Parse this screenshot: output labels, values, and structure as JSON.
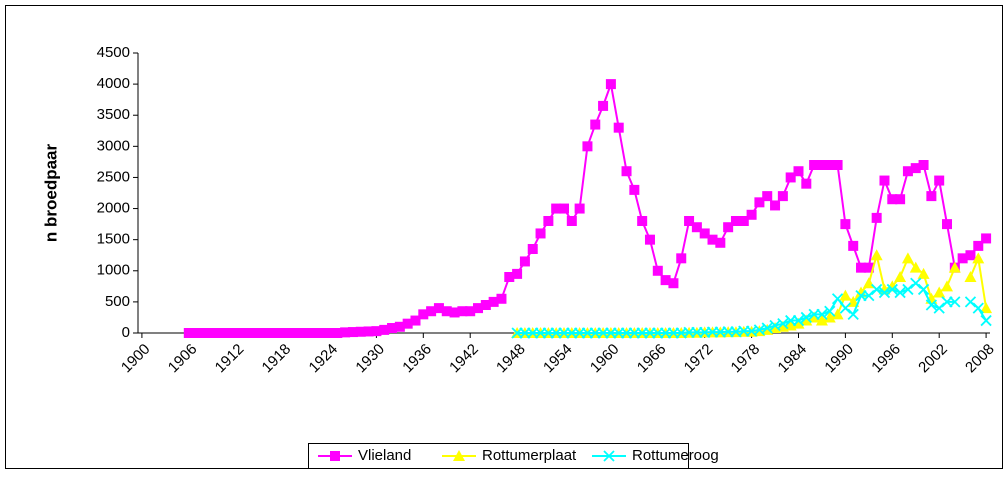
{
  "chart_data": {
    "type": "line",
    "y_label": "n broedpaar",
    "x": [
      1906,
      1907,
      1908,
      1909,
      1910,
      1911,
      1912,
      1913,
      1914,
      1915,
      1916,
      1917,
      1918,
      1919,
      1920,
      1921,
      1922,
      1923,
      1924,
      1925,
      1926,
      1927,
      1928,
      1929,
      1930,
      1931,
      1932,
      1933,
      1934,
      1935,
      1936,
      1937,
      1938,
      1939,
      1940,
      1941,
      1942,
      1943,
      1944,
      1945,
      1946,
      1947,
      1948,
      1949,
      1950,
      1951,
      1952,
      1953,
      1954,
      1955,
      1956,
      1957,
      1958,
      1959,
      1960,
      1961,
      1962,
      1963,
      1964,
      1965,
      1966,
      1967,
      1968,
      1969,
      1970,
      1971,
      1972,
      1973,
      1974,
      1975,
      1976,
      1977,
      1978,
      1979,
      1980,
      1981,
      1982,
      1983,
      1984,
      1985,
      1986,
      1987,
      1988,
      1989,
      1990,
      1991,
      1992,
      1993,
      1994,
      1995,
      1996,
      1997,
      1998,
      1999,
      2000,
      2001,
      2002,
      2003,
      2004,
      2005,
      2006,
      2007,
      2008
    ],
    "series": [
      {
        "name": "Vlieland",
        "color": "#ff00ff",
        "marker": "square",
        "values": [
          0,
          0,
          0,
          0,
          0,
          0,
          0,
          0,
          0,
          0,
          0,
          0,
          0,
          0,
          0,
          0,
          0,
          0,
          0,
          0,
          10,
          15,
          20,
          25,
          30,
          50,
          80,
          100,
          150,
          200,
          300,
          350,
          400,
          350,
          330,
          350,
          350,
          400,
          450,
          500,
          550,
          900,
          950,
          1150,
          1350,
          1600,
          1800,
          2000,
          2000,
          1800,
          2000,
          3000,
          3350,
          3650,
          4000,
          3300,
          2600,
          2300,
          1800,
          1500,
          1000,
          850,
          800,
          1200,
          1800,
          1700,
          1600,
          1500,
          1450,
          1700,
          1800,
          1800,
          1900,
          2100,
          2200,
          2050,
          2200,
          2500,
          2600,
          2400,
          2700,
          2700,
          2700,
          2700,
          1750,
          1400,
          1050,
          1050,
          1850,
          2450,
          2150,
          2150,
          2600,
          2650,
          2700,
          2200,
          2450,
          1750,
          1050,
          1200,
          1250,
          1400,
          1520
        ]
      },
      {
        "name": "Rottumerplaat",
        "color": "#ffff00",
        "marker": "triangle",
        "values": [
          null,
          null,
          null,
          null,
          null,
          null,
          null,
          null,
          null,
          null,
          null,
          null,
          null,
          null,
          null,
          null,
          null,
          null,
          null,
          null,
          null,
          null,
          null,
          null,
          null,
          null,
          null,
          null,
          null,
          null,
          null,
          null,
          null,
          null,
          null,
          null,
          null,
          null,
          null,
          null,
          null,
          null,
          0,
          0,
          0,
          0,
          0,
          0,
          0,
          0,
          0,
          0,
          0,
          0,
          0,
          0,
          0,
          0,
          0,
          0,
          0,
          0,
          0,
          0,
          5,
          5,
          10,
          10,
          10,
          15,
          15,
          20,
          20,
          30,
          50,
          80,
          100,
          120,
          150,
          200,
          250,
          200,
          250,
          300,
          600,
          500,
          650,
          800,
          1250,
          700,
          750,
          900,
          1200,
          1050,
          950,
          550,
          650,
          750,
          1050,
          null,
          900,
          1200,
          400
        ]
      },
      {
        "name": "Rottumeroog",
        "color": "#00ffff",
        "marker": "x",
        "values": [
          null,
          null,
          null,
          null,
          null,
          null,
          null,
          null,
          null,
          null,
          null,
          null,
          null,
          null,
          null,
          null,
          null,
          null,
          null,
          null,
          null,
          null,
          null,
          null,
          null,
          null,
          null,
          null,
          null,
          null,
          null,
          null,
          null,
          null,
          null,
          null,
          null,
          null,
          null,
          null,
          null,
          null,
          0,
          0,
          0,
          0,
          0,
          0,
          0,
          0,
          0,
          0,
          0,
          0,
          0,
          0,
          0,
          0,
          0,
          0,
          0,
          0,
          0,
          0,
          10,
          10,
          10,
          15,
          15,
          20,
          20,
          30,
          30,
          50,
          80,
          120,
          150,
          200,
          200,
          250,
          300,
          300,
          350,
          550,
          400,
          300,
          600,
          600,
          700,
          650,
          700,
          650,
          700,
          800,
          700,
          450,
          400,
          500,
          500,
          null,
          500,
          400,
          200
        ]
      }
    ],
    "xlim": [
      1899.5,
      2008.5
    ],
    "xticks": [
      1900,
      1906,
      1912,
      1918,
      1924,
      1930,
      1936,
      1942,
      1948,
      1954,
      1960,
      1966,
      1972,
      1978,
      1984,
      1990,
      1996,
      2002,
      2008
    ],
    "ylim": [
      0,
      4500
    ],
    "yticks": [
      0,
      500,
      1000,
      1500,
      2000,
      2500,
      3000,
      3500,
      4000,
      4500
    ],
    "legend": "bottom"
  }
}
